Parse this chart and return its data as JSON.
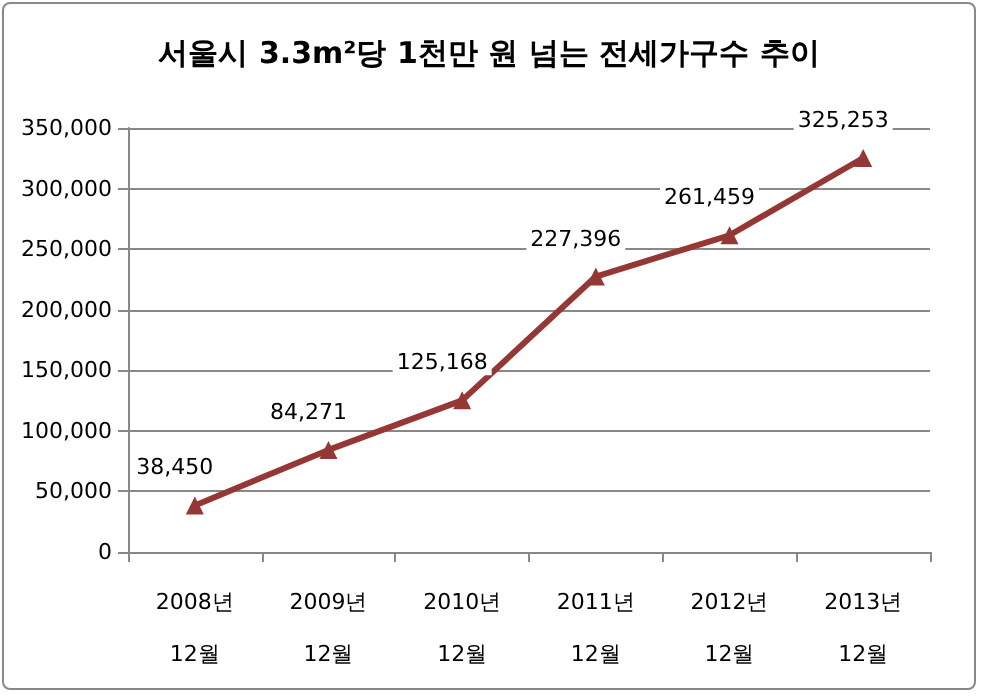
{
  "chart_data": {
    "type": "line",
    "title": "서울시 3.3m²당 1천만 원 넘는 전세가구수 추이",
    "categories": [
      "2008년\n12월",
      "2009년\n12월",
      "2010년\n12월",
      "2011년\n12월",
      "2012년\n12월",
      "2013년\n12월"
    ],
    "series": [
      {
        "color": "#953735",
        "values": [
          38450,
          84271,
          125168,
          227396,
          261459,
          325253
        ],
        "value_labels": [
          "38,450",
          "84,271",
          "125,168",
          "227,396",
          "261,459",
          "325,253"
        ]
      }
    ],
    "ylim": [
      0,
      350000
    ],
    "yticks": [
      {
        "value": 0,
        "label": "0"
      },
      {
        "value": 50000,
        "label": "50,000"
      },
      {
        "value": 100000,
        "label": "100,000"
      },
      {
        "value": 150000,
        "label": "150,000"
      },
      {
        "value": 200000,
        "label": "200,000"
      },
      {
        "value": 250000,
        "label": "250,000"
      },
      {
        "value": 300000,
        "label": "300,000"
      },
      {
        "value": 350000,
        "label": "350,000"
      }
    ],
    "grid": "y",
    "marker": "triangle",
    "line_style": "solid"
  }
}
